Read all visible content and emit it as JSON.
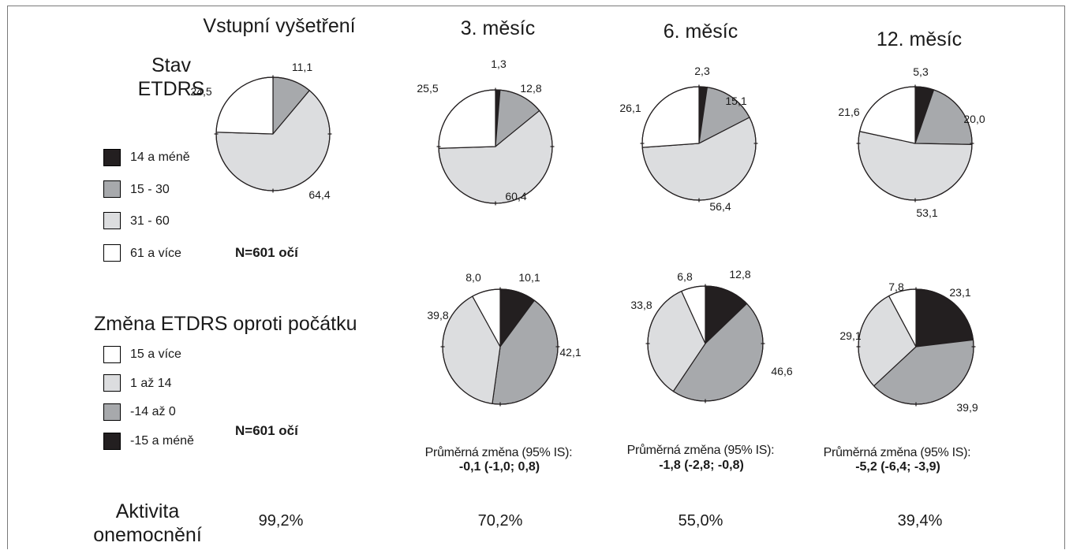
{
  "headers": {
    "baseline": "Vstupní vyšetření",
    "m3": "3. měsíc",
    "m6": "6. měsíc",
    "m12": "12. měsíc"
  },
  "row1": {
    "label_line1": "Stav",
    "label_line2": "ETDRS",
    "n_label": "N=601 očí",
    "legend": [
      {
        "label": "14 a méně",
        "color": "#231f20"
      },
      {
        "label": "15 - 30",
        "color": "#a7a9ac"
      },
      {
        "label": "31 - 60",
        "color": "#dcdddf"
      },
      {
        "label": "61 a více",
        "color": "#ffffff"
      }
    ]
  },
  "row2": {
    "label": "Změna ETDRS oproti počátku",
    "n_label": "N=601 očí",
    "legend": [
      {
        "label": "15 a více",
        "color": "#ffffff"
      },
      {
        "label": "1 až 14",
        "color": "#dcdddf"
      },
      {
        "label": "-14 až 0",
        "color": "#a7a9ac"
      },
      {
        "label": "-15 a méně",
        "color": "#231f20"
      }
    ],
    "stats": [
      {
        "label": "Průměrná změna (95% IS):",
        "value": "-0,1 (-1,0; 0,8)"
      },
      {
        "label": "Průměrná změna (95% IS):",
        "value": "-1,8 (-2,8; -0,8)"
      },
      {
        "label": "Průměrná změna (95% IS):",
        "value": "-5,2 (-6,4; -3,9)"
      }
    ]
  },
  "row3": {
    "label_line1": "Aktivita",
    "label_line2": "onemocnění",
    "values": [
      "99,2%",
      "70,2%",
      "55,0%",
      "39,4%"
    ]
  },
  "chart_data": [
    {
      "type": "pie",
      "title": "Vstupní vyšetření",
      "categories": [
        "14 a méně",
        "15 - 30",
        "31 - 60",
        "61 a více"
      ],
      "values": [
        0,
        11.1,
        64.4,
        24.5
      ],
      "labels": [
        "",
        "11,1",
        "64,4",
        "24,5"
      ]
    },
    {
      "type": "pie",
      "title": "3. měsíc",
      "categories": [
        "14 a méně",
        "15 - 30",
        "31 - 60",
        "61 a více"
      ],
      "values": [
        1.3,
        12.8,
        60.4,
        25.5
      ],
      "labels": [
        "1,3",
        "12,8",
        "60,4",
        "25,5"
      ]
    },
    {
      "type": "pie",
      "title": "6. měsíc",
      "categories": [
        "14 a méně",
        "15 - 30",
        "31 - 60",
        "61 a více"
      ],
      "values": [
        2.3,
        15.1,
        56.4,
        26.1
      ],
      "labels": [
        "2,3",
        "15,1",
        "56,4",
        "26,1"
      ]
    },
    {
      "type": "pie",
      "title": "12. měsíc",
      "categories": [
        "14 a méně",
        "15 - 30",
        "31 - 60",
        "61 a více"
      ],
      "values": [
        5.3,
        20.0,
        53.1,
        21.6
      ],
      "labels": [
        "5,3",
        "20,0",
        "53,1",
        "21,6"
      ]
    },
    {
      "type": "pie",
      "title": "3. měsíc",
      "categories": [
        "-15 a méně",
        "-14 až 0",
        "1 až 14",
        "15 a více"
      ],
      "values": [
        10.1,
        42.1,
        39.8,
        8.0
      ],
      "labels": [
        "10,1",
        "42,1",
        "39,8",
        "8,0"
      ]
    },
    {
      "type": "pie",
      "title": "6. měsíc",
      "categories": [
        "-15 a méně",
        "-14 až 0",
        "1 až 14",
        "15 a více"
      ],
      "values": [
        12.8,
        46.6,
        33.8,
        6.8
      ],
      "labels": [
        "12,8",
        "46,6",
        "33,8",
        "6,8"
      ]
    },
    {
      "type": "pie",
      "title": "12. měsíc",
      "categories": [
        "-15 a méně",
        "-14 až 0",
        "1 až 14",
        "15 a více"
      ],
      "values": [
        23.1,
        39.9,
        29.1,
        7.8
      ],
      "labels": [
        "23,1",
        "39,9",
        "29,1",
        "7,8"
      ]
    }
  ],
  "colors": {
    "black": "#231f20",
    "dark_gray": "#a7a9ac",
    "light_gray": "#dcdddf",
    "white": "#ffffff"
  }
}
